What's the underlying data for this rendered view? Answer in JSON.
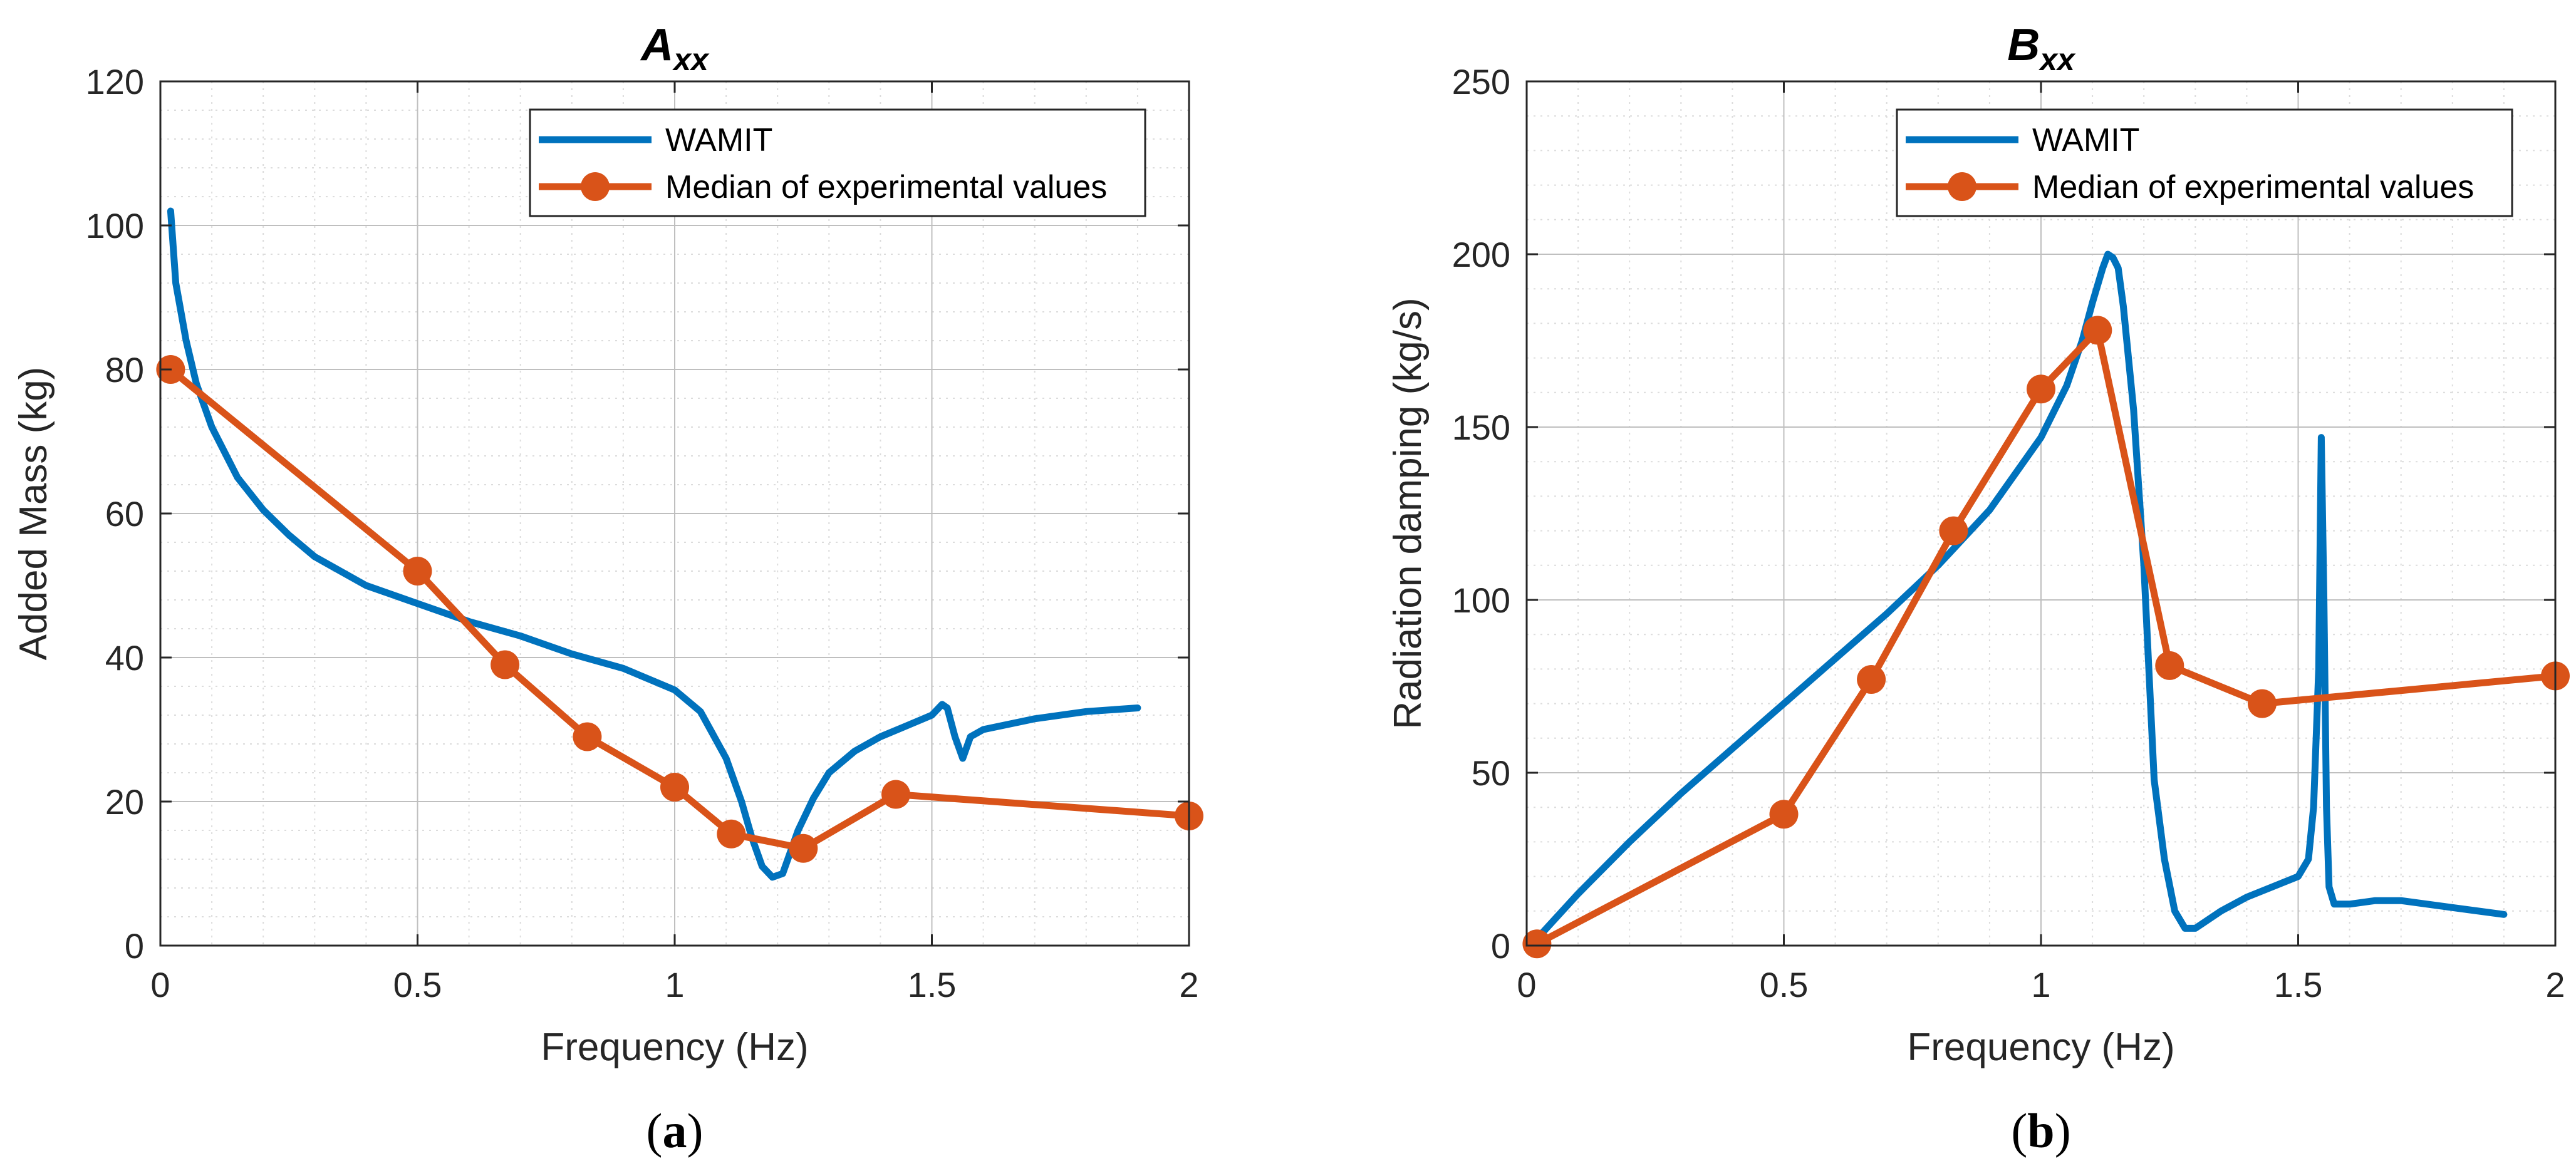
{
  "colors": {
    "wamit": "#0072BD",
    "median": "#D95319",
    "axis": "#262626",
    "grid_major": "#bfbfbf",
    "grid_minor": "#dcdcdc"
  },
  "captions": [
    {
      "open": "(",
      "letter": "a",
      "close": ")"
    },
    {
      "open": "(",
      "letter": "b",
      "close": ")"
    }
  ],
  "chart_data": [
    {
      "type": "line",
      "title": "A",
      "title_subscript": "xx",
      "xlabel": "Frequency (Hz)",
      "ylabel": "Added Mass (kg)",
      "xlim": [
        0,
        2
      ],
      "ylim": [
        0,
        120
      ],
      "xticks": [
        0,
        0.5,
        1,
        1.5,
        2
      ],
      "xtick_labels": [
        "0",
        "0.5",
        "1",
        "1.5",
        "2"
      ],
      "yticks": [
        0,
        20,
        40,
        60,
        80,
        100,
        120
      ],
      "ytick_labels": [
        "0",
        "20",
        "40",
        "60",
        "80",
        "100",
        "120"
      ],
      "grid": true,
      "minor_grid": true,
      "legend_position": "top-right",
      "series": [
        {
          "name": "WAMIT",
          "style": "line",
          "x": [
            0.02,
            0.03,
            0.05,
            0.07,
            0.1,
            0.15,
            0.2,
            0.25,
            0.3,
            0.4,
            0.5,
            0.6,
            0.7,
            0.8,
            0.9,
            1.0,
            1.05,
            1.1,
            1.13,
            1.15,
            1.17,
            1.19,
            1.21,
            1.22,
            1.24,
            1.27,
            1.3,
            1.35,
            1.4,
            1.45,
            1.5,
            1.52,
            1.53,
            1.545,
            1.56,
            1.575,
            1.6,
            1.7,
            1.8,
            1.9
          ],
          "y": [
            102,
            92,
            84,
            78,
            72,
            65,
            60.5,
            57,
            54,
            50,
            47.5,
            45,
            43,
            40.5,
            38.5,
            35.5,
            32.5,
            26,
            20,
            15,
            11,
            9.5,
            10,
            12,
            16,
            20.5,
            24,
            27,
            29,
            30.5,
            32,
            33.5,
            33,
            29,
            26,
            29,
            30,
            31.5,
            32.5,
            33
          ]
        },
        {
          "name": "Median of experimental values",
          "style": "line-marker",
          "x": [
            0.02,
            0.5,
            0.67,
            0.83,
            1.0,
            1.11,
            1.25,
            1.43,
            2.0
          ],
          "y": [
            80,
            52,
            39,
            29,
            22,
            15.5,
            13.5,
            21,
            18
          ]
        }
      ]
    },
    {
      "type": "line",
      "title": "B",
      "title_subscript": "xx",
      "xlabel": "Frequency (Hz)",
      "ylabel": "Radiation damping (kg/s)",
      "xlim": [
        0,
        2
      ],
      "ylim": [
        0,
        250
      ],
      "xticks": [
        0,
        0.5,
        1,
        1.5,
        2
      ],
      "xtick_labels": [
        "0",
        "0.5",
        "1",
        "1.5",
        "2"
      ],
      "yticks": [
        0,
        50,
        100,
        150,
        200,
        250
      ],
      "ytick_labels": [
        "0",
        "50",
        "100",
        "150",
        "200",
        "250"
      ],
      "grid": true,
      "minor_grid": true,
      "legend_position": "top-right",
      "series": [
        {
          "name": "WAMIT",
          "style": "line",
          "x": [
            0.02,
            0.1,
            0.2,
            0.3,
            0.4,
            0.5,
            0.6,
            0.7,
            0.8,
            0.9,
            1.0,
            1.05,
            1.08,
            1.1,
            1.12,
            1.13,
            1.14,
            1.15,
            1.16,
            1.18,
            1.2,
            1.22,
            1.24,
            1.26,
            1.28,
            1.3,
            1.32,
            1.35,
            1.4,
            1.45,
            1.5,
            1.52,
            1.53,
            1.54,
            1.545,
            1.55,
            1.555,
            1.56,
            1.57,
            1.6,
            1.65,
            1.7,
            1.8,
            1.9
          ],
          "y": [
            2,
            15,
            30,
            44,
            57,
            70,
            83,
            96,
            110,
            126,
            147,
            162,
            175,
            186,
            196,
            200,
            199,
            196,
            185,
            155,
            110,
            48,
            25,
            10,
            5,
            5,
            7,
            10,
            14,
            17,
            20,
            25,
            40,
            80,
            147,
            100,
            40,
            17,
            12,
            12,
            13,
            13,
            11,
            9
          ]
        },
        {
          "name": "Median of experimental values",
          "style": "line-marker",
          "x": [
            0.02,
            0.5,
            0.67,
            0.83,
            1.0,
            1.11,
            1.25,
            1.43,
            2.0
          ],
          "y": [
            0.5,
            38,
            77,
            120,
            161,
            178,
            81,
            70,
            78
          ]
        }
      ]
    }
  ]
}
